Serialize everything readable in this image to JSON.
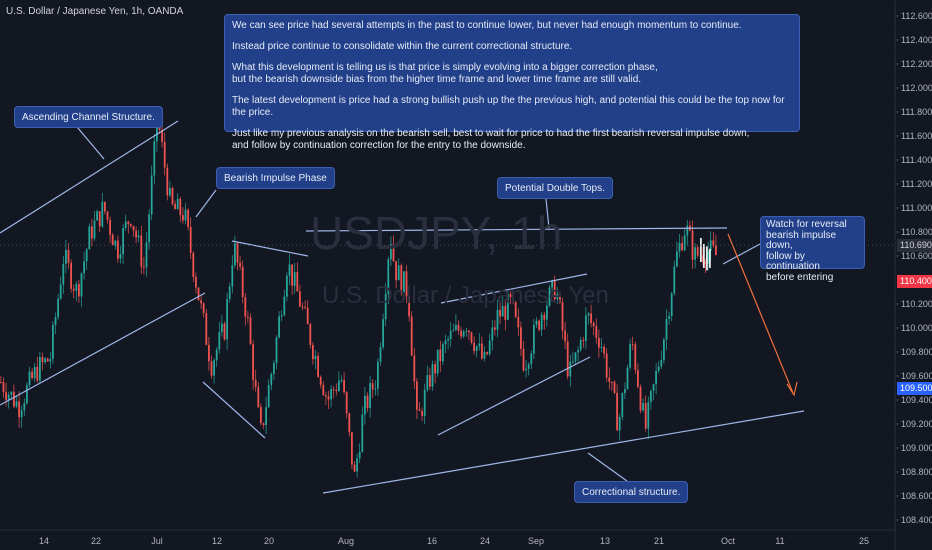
{
  "symbol_title": "U.S. Dollar / Japanese Yen, 1h, OANDA",
  "watermark": {
    "ticker": "USDJPY, 1h",
    "name": "U.S. Dollar / Japanese Yen"
  },
  "notes": {
    "main": [
      "We can see price had several attempts in the past to continue lower, but never had enough momentum to continue.",
      "Instead price continue to consolidate within the current correctional structure.",
      "What this development is telling us is that price is simply evolving into a bigger correction phase,\nbut the bearish downside bias from the higher time frame and lower time frame are still valid.",
      "The latest development is price had a strong bullish push up the the previous high, and potential this could be the top now for the price.",
      "Just like my previous analysis on the bearish sell, best to wait for price to had the first bearish reversal impulse down,\nand follow by continuation correction for the entry to the downside."
    ],
    "ascending": "Ascending Channel Structure.",
    "impulse": "Bearish Impulse Phase",
    "double_tops": "Potential Double Tops.",
    "correctional": "Correctional structure.",
    "watch": "Watch for reversal\nbearish impulse down,\nfollow by continuation\nbefore entering"
  },
  "price_tags": {
    "current": "110.690",
    "red": "110.400",
    "blue": "109.500"
  },
  "colors": {
    "background": "#131722",
    "up": "#26a69a",
    "down": "#ef5350",
    "annotation": "#9fb6ea",
    "note_bg": "#22408a",
    "arrow": "#f0703a"
  },
  "chart_data": {
    "type": "candlestick",
    "symbol": "USDJPY",
    "timeframe": "1h",
    "y_ticks": [
      "112.600",
      "112.400",
      "112.200",
      "112.000",
      "111.800",
      "111.600",
      "111.400",
      "111.200",
      "111.000",
      "110.800",
      "110.600",
      "110.200",
      "110.000",
      "109.800",
      "109.600",
      "109.400",
      "109.200",
      "109.000",
      "108.800",
      "108.600",
      "108.400"
    ],
    "ylim": [
      108.35,
      112.7
    ],
    "x_ticks": [
      "14",
      "22",
      "Jul",
      "12",
      "20",
      "Aug",
      "16",
      "24",
      "Sep",
      "13",
      "21",
      "Oct",
      "11",
      "25"
    ],
    "price_path": [
      [
        0,
        109.55
      ],
      [
        0.02,
        109.35
      ],
      [
        0.04,
        109.65
      ],
      [
        0.055,
        109.75
      ],
      [
        0.07,
        110.6
      ],
      [
        0.085,
        110.3
      ],
      [
        0.1,
        110.8
      ],
      [
        0.115,
        111.0
      ],
      [
        0.13,
        110.65
      ],
      [
        0.145,
        110.95
      ],
      [
        0.16,
        110.5
      ],
      [
        0.175,
        111.75
      ],
      [
        0.19,
        111.0
      ],
      [
        0.205,
        110.95
      ],
      [
        0.22,
        110.3
      ],
      [
        0.235,
        109.7
      ],
      [
        0.25,
        110.0
      ],
      [
        0.26,
        110.7
      ],
      [
        0.275,
        110.1
      ],
      [
        0.29,
        109.1
      ],
      [
        0.305,
        109.75
      ],
      [
        0.32,
        110.55
      ],
      [
        0.335,
        110.2
      ],
      [
        0.35,
        109.8
      ],
      [
        0.365,
        109.4
      ],
      [
        0.38,
        109.6
      ],
      [
        0.395,
        108.75
      ],
      [
        0.405,
        109.3
      ],
      [
        0.42,
        109.6
      ],
      [
        0.435,
        110.8
      ],
      [
        0.44,
        110.5
      ],
      [
        0.455,
        110.3
      ],
      [
        0.465,
        109.2
      ],
      [
        0.48,
        109.6
      ],
      [
        0.5,
        109.9
      ],
      [
        0.52,
        110.05
      ],
      [
        0.54,
        109.7
      ],
      [
        0.555,
        110.1
      ],
      [
        0.57,
        110.2
      ],
      [
        0.585,
        109.7
      ],
      [
        0.605,
        110.15
      ],
      [
        0.62,
        110.35
      ],
      [
        0.635,
        109.6
      ],
      [
        0.645,
        109.8
      ],
      [
        0.655,
        110.1
      ],
      [
        0.67,
        109.9
      ],
      [
        0.69,
        109.2
      ],
      [
        0.705,
        109.9
      ],
      [
        0.72,
        109.15
      ],
      [
        0.74,
        109.9
      ],
      [
        0.755,
        110.6
      ],
      [
        0.765,
        110.85
      ],
      [
        0.775,
        110.6
      ],
      [
        0.79,
        110.65
      ],
      [
        0.8,
        110.6
      ]
    ],
    "annotations": [
      "Ascending Channel Structure.",
      "Bearish Impulse Phase",
      "Potential Double Tops.",
      "Correctional structure.",
      "Watch for reversal bearish impulse down, follow by continuation before entering"
    ]
  }
}
